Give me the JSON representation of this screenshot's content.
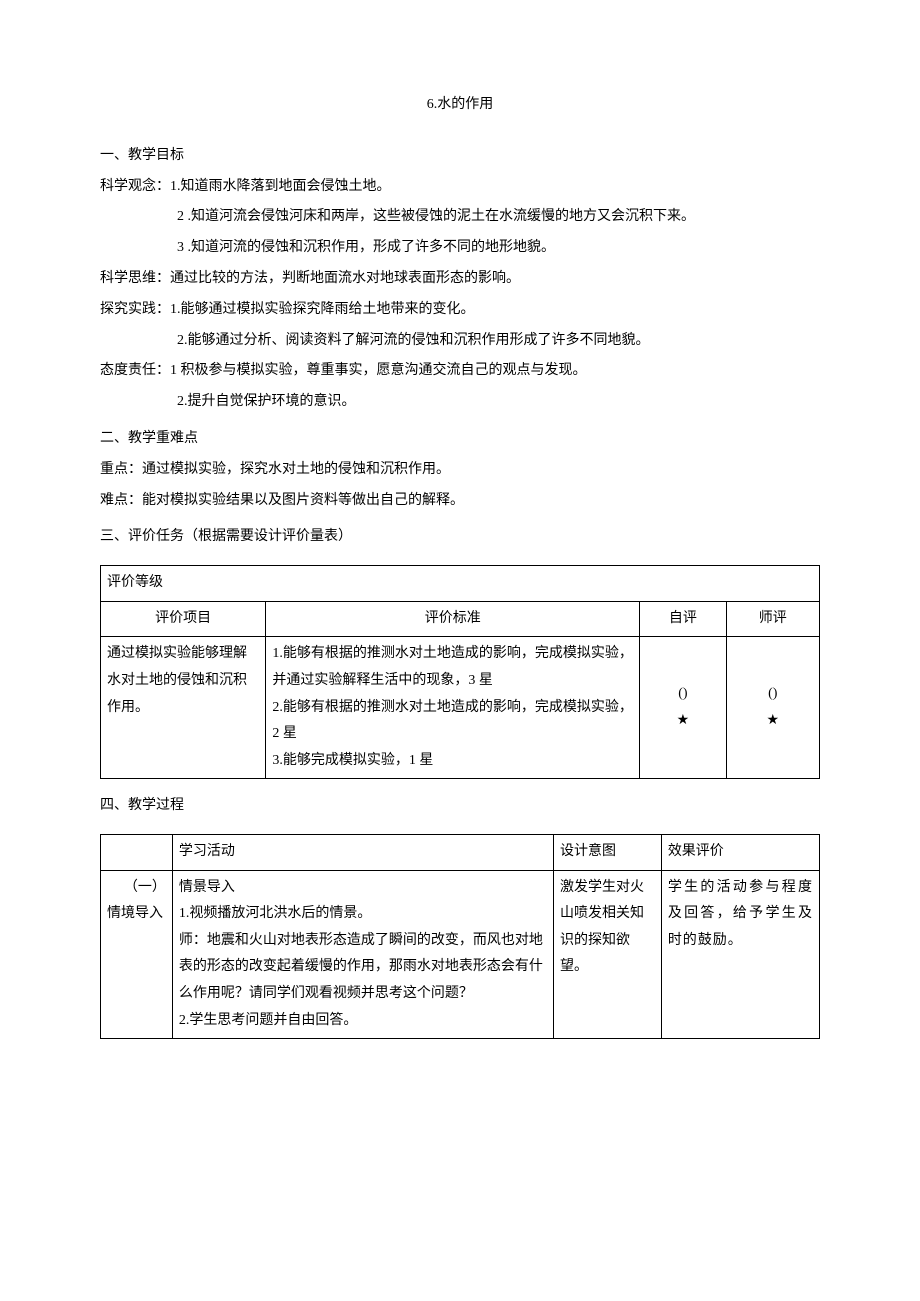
{
  "title": "6.水的作用",
  "sections": {
    "s1_heading": "一、教学目标",
    "sci_concept_label": "科学观念：",
    "sci_concept_1": "1.知道雨水降落到地面会侵蚀土地。",
    "sci_concept_2": "2 .知道河流会侵蚀河床和两岸，这些被侵蚀的泥土在水流缓慢的地方又会沉积下来。",
    "sci_concept_3": "3      .知道河流的侵蚀和沉积作用，形成了许多不同的地形地貌。",
    "sci_think_label": "科学思维：",
    "sci_think_1": "通过比较的方法，判断地面流水对地球表面形态的影响。",
    "practice_label": "探究实践：",
    "practice_1": "1.能够通过模拟实验探究降雨给土地带来的变化。",
    "practice_2": "2.能够通过分析、阅读资料了解河流的侵蚀和沉积作用形成了许多不同地貌。",
    "attitude_label": "态度责任：",
    "attitude_1": "1 积极参与模拟实验，尊重事实，愿意沟通交流自己的观点与发现。",
    "attitude_2": "2.提升自觉保护环境的意识。",
    "s2_heading": "二、教学重难点",
    "key_point": "重点：通过模拟实验，探究水对土地的侵蚀和沉积作用。",
    "difficulty": "难点：能对模拟实验结果以及图片资料等做出自己的解释。",
    "s3_heading": "三、评价任务（根据需要设计评价量表）",
    "s4_heading": "四、教学过程"
  },
  "table1": {
    "header_span": "评价等级",
    "col1": "评价项目",
    "col2": "评价标准",
    "col3": "自评",
    "col4": "师评",
    "row1_item": "通过模拟实验能够理解水对土地的侵蚀和沉积作用。",
    "row1_std": "1.能够有根据的推测水对土地造成的影响，完成模拟实验，并通过实验解释生活中的现象，3 星\n2.能够有根据的推测水对土地造成的影响，完成模拟实验，2 星\n3.能够完成模拟实验，1 星",
    "row1_self": "()\n★",
    "row1_teacher": "()\n★"
  },
  "table2": {
    "h1": "",
    "h2": "学习活动",
    "h3": "设计意图",
    "h4": "效果评价",
    "r1c1a": "（一）",
    "r1c1b": "情境导入",
    "r1c2_title": "情景导入",
    "r1c2_body": "1.视频播放河北洪水后的情景。\n师：地震和火山对地表形态造成了瞬间的改变，而风也对地表的形态的改变起着缓慢的作用，那雨水对地表形态会有什么作用呢？请同学们观看视频并思考这个问题？\n2.学生思考问题并自由回答。",
    "r1c3": "激发学生对火山喷发相关知识的探知欲望。",
    "r1c4": "学生的活动参与程度及回答，给予学生及时的鼓励。"
  }
}
